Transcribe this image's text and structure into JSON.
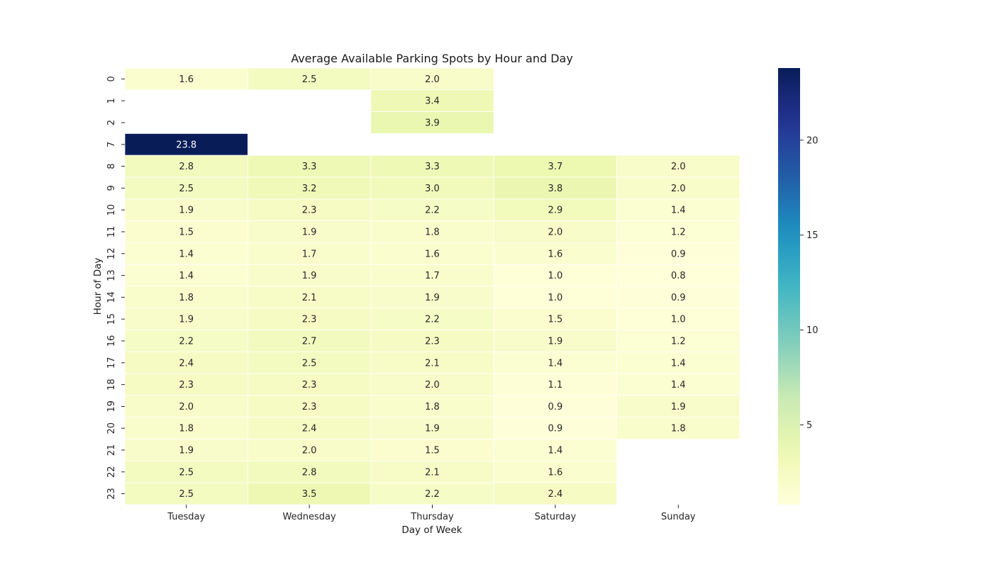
{
  "chart_data": {
    "type": "heatmap",
    "title": "Average Available Parking Spots by Hour and Day",
    "xlabel": "Day of Week",
    "ylabel": "Hour of Day",
    "x_categories": [
      "Tuesday",
      "Wednesday",
      "Thursday",
      "Saturday",
      "Sunday"
    ],
    "y_categories": [
      "0",
      "1",
      "2",
      "7",
      "8",
      "9",
      "10",
      "11",
      "12",
      "13",
      "14",
      "15",
      "16",
      "17",
      "18",
      "19",
      "20",
      "21",
      "22",
      "23"
    ],
    "values": [
      [
        1.6,
        2.5,
        2.0,
        null,
        null
      ],
      [
        null,
        null,
        3.4,
        null,
        null
      ],
      [
        null,
        null,
        3.9,
        null,
        null
      ],
      [
        23.8,
        null,
        null,
        null,
        null
      ],
      [
        2.8,
        3.3,
        3.3,
        3.7,
        2.0
      ],
      [
        2.5,
        3.2,
        3.0,
        3.8,
        2.0
      ],
      [
        1.9,
        2.3,
        2.2,
        2.9,
        1.4
      ],
      [
        1.5,
        1.9,
        1.8,
        2.0,
        1.2
      ],
      [
        1.4,
        1.7,
        1.6,
        1.6,
        0.9
      ],
      [
        1.4,
        1.9,
        1.7,
        1.0,
        0.8
      ],
      [
        1.8,
        2.1,
        1.9,
        1.0,
        0.9
      ],
      [
        1.9,
        2.3,
        2.2,
        1.5,
        1.0
      ],
      [
        2.2,
        2.7,
        2.3,
        1.9,
        1.2
      ],
      [
        2.4,
        2.5,
        2.1,
        1.4,
        1.4
      ],
      [
        2.3,
        2.3,
        2.0,
        1.1,
        1.4
      ],
      [
        2.0,
        2.3,
        1.8,
        0.9,
        1.9
      ],
      [
        1.8,
        2.4,
        1.9,
        0.9,
        1.8
      ],
      [
        1.9,
        2.0,
        1.5,
        1.4,
        null
      ],
      [
        2.5,
        2.8,
        2.1,
        1.6,
        null
      ],
      [
        2.5,
        3.5,
        2.2,
        2.4,
        null
      ]
    ],
    "colormap": "YlGnBu",
    "colorbar": {
      "range": [
        0.8,
        23.8
      ],
      "ticks": [
        5,
        10,
        15,
        20
      ],
      "tick_labels": [
        "5",
        "10",
        "15",
        "20"
      ]
    },
    "annotate": true,
    "value_format": "0.1f",
    "cell_gridlines": "white",
    "legend": "colorbar-right"
  }
}
